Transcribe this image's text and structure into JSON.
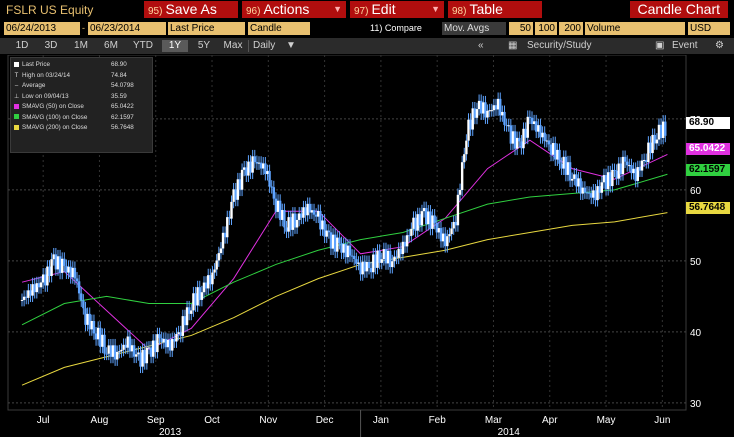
{
  "toolbar": {
    "ticker": "FSLR US Equity",
    "buttons": [
      {
        "num": "95)",
        "label": "Save As"
      },
      {
        "num": "96)",
        "label": "Actions"
      },
      {
        "num": "97)",
        "label": "Edit"
      },
      {
        "num": "98)",
        "label": "Table"
      }
    ],
    "chart_name": "Candle Chart"
  },
  "settings": {
    "start_date": "06/24/2013",
    "end_date": "06/23/2014",
    "price_field": "Last Price",
    "chart_style": "Candle",
    "compare": "11) Compare",
    "mov_avgs": "Mov. Avgs",
    "ma1": "50",
    "ma2": "100",
    "ma3": "200",
    "lower": "Volume",
    "currency": "USD"
  },
  "ranges": {
    "items": [
      "1D",
      "3D",
      "1M",
      "6M",
      "YTD",
      "1Y",
      "5Y",
      "Max"
    ],
    "active": "1Y",
    "period": "Daily",
    "security_study": "Security/Study",
    "event": "Event"
  },
  "colors": {
    "price": "#5fa4ff",
    "sma50": "#e030e0",
    "sma100": "#30d040",
    "sma200": "#e8d840",
    "axis_text": "#ffffff"
  },
  "legend": [
    {
      "icon": "square-white",
      "label": "Last Price",
      "value": "68.90"
    },
    {
      "icon": "high-marker",
      "label": "High on 03/24/14",
      "value": "74.84"
    },
    {
      "icon": "dash",
      "label": "Average",
      "value": "54.0798"
    },
    {
      "icon": "low-marker",
      "label": "Low on 09/04/13",
      "value": "35.59"
    },
    {
      "icon": "square-magenta",
      "label": "SMAVG (50) on Close",
      "value": "65.0422"
    },
    {
      "icon": "square-green",
      "label": "SMAVG (100) on Close",
      "value": "62.1597"
    },
    {
      "icon": "square-yellow",
      "label": "SMAVG (200) on Close",
      "value": "56.7648"
    }
  ],
  "tags": {
    "last": "68.90",
    "sma50": "65.0422",
    "sma100": "62.1597",
    "sma200": "56.7648"
  },
  "chart_data": {
    "type": "candlestick",
    "y_ticks": [
      30,
      40,
      50,
      60,
      70
    ],
    "ylim": [
      29,
      79
    ],
    "x_months": [
      "Jul",
      "Aug",
      "Sep",
      "Oct",
      "Nov",
      "Dec",
      "Jan",
      "Feb",
      "Mar",
      "Apr",
      "May",
      "Jun"
    ],
    "x_years": [
      "2013",
      "2014"
    ],
    "grid": true,
    "series": [
      {
        "name": "Last Price",
        "points": [
          [
            0,
            44.5
          ],
          [
            0.25,
            46
          ],
          [
            0.5,
            47
          ],
          [
            0.75,
            50
          ],
          [
            1,
            49
          ],
          [
            1.25,
            48
          ],
          [
            1.5,
            42
          ],
          [
            1.75,
            40
          ],
          [
            2,
            37.5
          ],
          [
            2.25,
            37
          ],
          [
            2.5,
            38.5
          ],
          [
            2.75,
            36
          ],
          [
            3,
            37
          ],
          [
            3.25,
            39
          ],
          [
            3.5,
            38
          ],
          [
            3.75,
            40.5
          ],
          [
            4,
            44
          ],
          [
            4.25,
            46
          ],
          [
            4.5,
            48
          ],
          [
            4.75,
            53
          ],
          [
            5,
            59
          ],
          [
            5.25,
            62.5
          ],
          [
            5.5,
            64
          ],
          [
            5.75,
            63
          ],
          [
            6,
            58
          ],
          [
            6.25,
            55
          ],
          [
            6.5,
            56
          ],
          [
            6.75,
            57.5
          ],
          [
            7,
            56
          ],
          [
            7.25,
            53
          ],
          [
            7.5,
            52
          ],
          [
            7.75,
            51
          ],
          [
            8,
            49
          ],
          [
            8.25,
            49.5
          ],
          [
            8.5,
            51
          ],
          [
            8.75,
            50
          ],
          [
            9,
            52
          ],
          [
            9.25,
            55
          ],
          [
            9.5,
            56.5
          ],
          [
            9.75,
            55
          ],
          [
            10,
            52.5
          ],
          [
            10.25,
            56
          ],
          [
            10.5,
            68
          ],
          [
            10.75,
            72
          ],
          [
            11,
            71
          ],
          [
            11.25,
            72
          ],
          [
            11.5,
            68
          ],
          [
            11.75,
            66
          ],
          [
            12,
            70
          ],
          [
            12.25,
            68
          ],
          [
            12.5,
            66
          ],
          [
            12.75,
            64
          ],
          [
            13,
            62
          ],
          [
            13.25,
            60
          ],
          [
            13.5,
            59
          ],
          [
            13.75,
            61
          ],
          [
            14,
            62
          ],
          [
            14.25,
            64
          ],
          [
            14.5,
            62
          ],
          [
            14.75,
            65
          ],
          [
            15,
            68
          ],
          [
            15.25,
            68.9
          ]
        ]
      },
      {
        "name": "SMAVG (50) on Close",
        "points": [
          [
            0,
            47
          ],
          [
            1,
            48.5
          ],
          [
            2,
            43
          ],
          [
            3,
            37.5
          ],
          [
            4,
            40.5
          ],
          [
            5,
            47.5
          ],
          [
            6,
            57
          ],
          [
            7,
            57
          ],
          [
            8,
            51
          ],
          [
            9,
            52
          ],
          [
            10,
            56
          ],
          [
            11,
            63
          ],
          [
            12,
            67
          ],
          [
            13,
            63
          ],
          [
            14,
            61.5
          ],
          [
            15.25,
            65
          ]
        ]
      },
      {
        "name": "SMAVG (100) on Close",
        "points": [
          [
            0,
            41
          ],
          [
            1,
            44
          ],
          [
            2,
            45
          ],
          [
            3,
            44
          ],
          [
            4,
            44
          ],
          [
            5,
            47
          ],
          [
            6,
            49.5
          ],
          [
            7,
            51.5
          ],
          [
            8,
            53
          ],
          [
            9,
            54
          ],
          [
            10,
            56
          ],
          [
            11,
            58
          ],
          [
            12,
            59
          ],
          [
            13,
            59.5
          ],
          [
            14,
            60
          ],
          [
            15.25,
            62.2
          ]
        ]
      },
      {
        "name": "SMAVG (200) on Close",
        "points": [
          [
            0,
            32.5
          ],
          [
            1,
            35
          ],
          [
            2,
            36.5
          ],
          [
            3,
            38
          ],
          [
            4,
            39.5
          ],
          [
            5,
            42
          ],
          [
            6,
            45
          ],
          [
            7,
            47.5
          ],
          [
            8,
            49.5
          ],
          [
            9,
            50.5
          ],
          [
            10,
            51.5
          ],
          [
            11,
            53
          ],
          [
            12,
            54
          ],
          [
            13,
            55
          ],
          [
            14,
            55.5
          ],
          [
            15.25,
            56.8
          ]
        ]
      }
    ]
  }
}
